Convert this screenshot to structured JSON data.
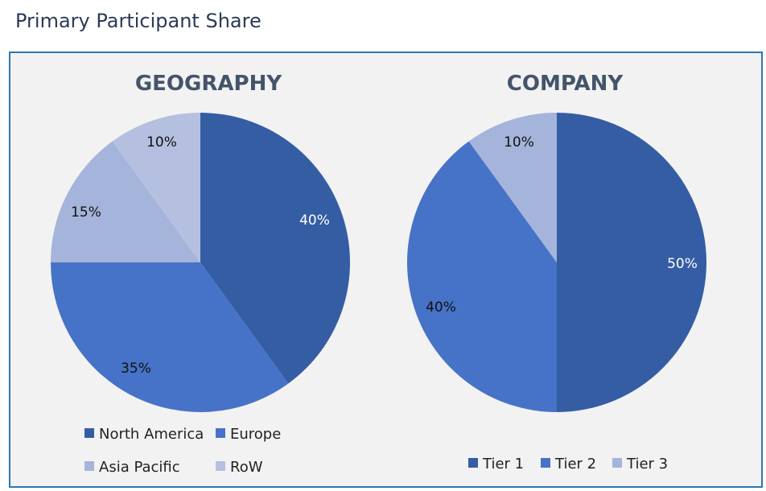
{
  "page_title": "Primary Participant Share",
  "chart_data": [
    {
      "type": "pie",
      "title": "GEOGRAPHY",
      "categories": [
        "North America",
        "Europe",
        "Asia Pacific",
        "RoW"
      ],
      "values": [
        40,
        35,
        15,
        10
      ],
      "labels": [
        "40%",
        "35%",
        "15%",
        "10%"
      ],
      "colors": [
        "#355da4",
        "#4673c7",
        "#a5b4da",
        "#b5c0e0"
      ],
      "label_colors": [
        "#ffffff",
        "#111111",
        "#111111",
        "#111111"
      ],
      "legend_position": "bottom"
    },
    {
      "type": "pie",
      "title": "COMPANY",
      "categories": [
        "Tier 1",
        "Tier 2",
        "Tier 3"
      ],
      "values": [
        50,
        40,
        10
      ],
      "labels": [
        "50%",
        "40%",
        "10%"
      ],
      "colors": [
        "#355da4",
        "#4673c7",
        "#a5b4da"
      ],
      "label_colors": [
        "#ffffff",
        "#111111",
        "#111111"
      ],
      "legend_position": "bottom"
    }
  ]
}
